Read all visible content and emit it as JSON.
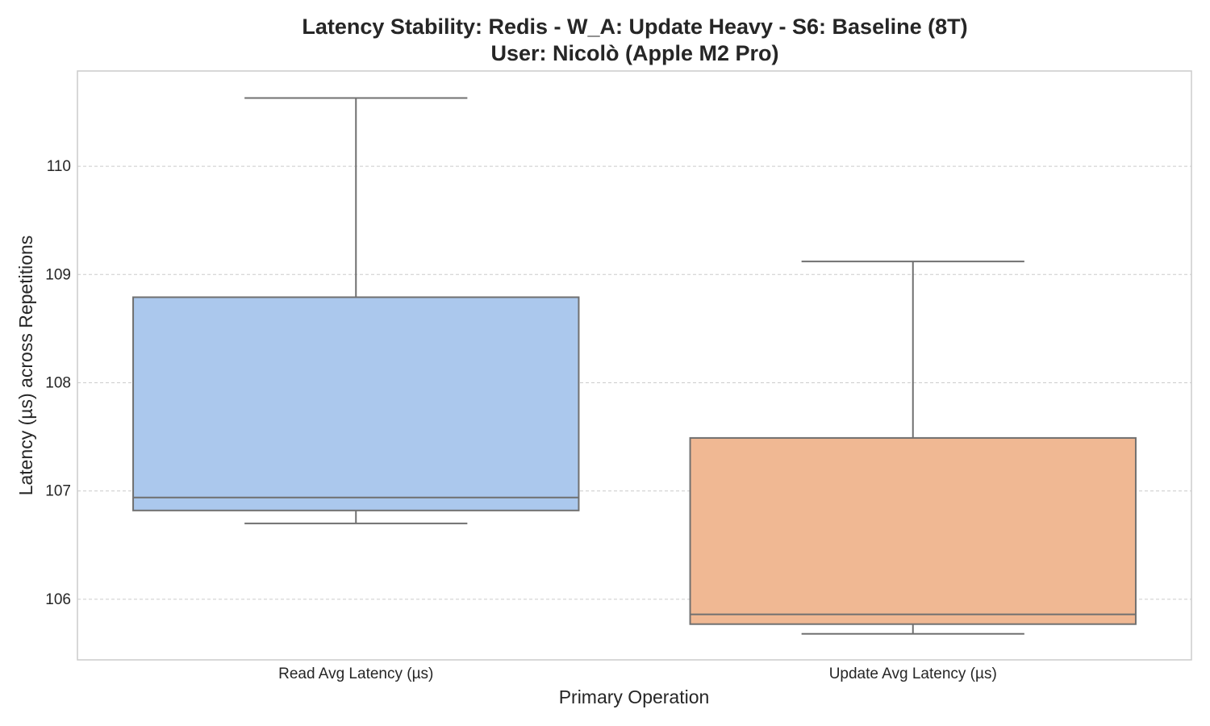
{
  "chart_data": {
    "type": "box",
    "title_lines": [
      "Latency Stability: Redis - W_A: Update Heavy - S6: Baseline (8T)",
      "User: Nicolò (Apple M2 Pro)"
    ],
    "xlabel": "Primary Operation",
    "ylabel": "Latency (µs) across Repetitions",
    "categories": [
      "Read Avg Latency (µs)",
      "Update Avg Latency (µs)"
    ],
    "boxes": [
      {
        "category": "Read Avg Latency (µs)",
        "whisker_low": 106.7,
        "q1": 106.82,
        "median": 106.94,
        "q3": 108.79,
        "whisker_high": 110.63,
        "color": "#abc8ed"
      },
      {
        "category": "Update Avg Latency (µs)",
        "whisker_low": 105.68,
        "q1": 105.77,
        "median": 105.86,
        "q3": 107.49,
        "whisker_high": 109.12,
        "color": "#f0b893"
      }
    ],
    "yticks": [
      106,
      107,
      108,
      109,
      110
    ],
    "ylim": [
      105.44,
      110.88
    ],
    "grid": true,
    "colors": {
      "edge": "#707070",
      "grid": "#cccccc",
      "frame": "#cccccc",
      "text": "#262626"
    }
  }
}
